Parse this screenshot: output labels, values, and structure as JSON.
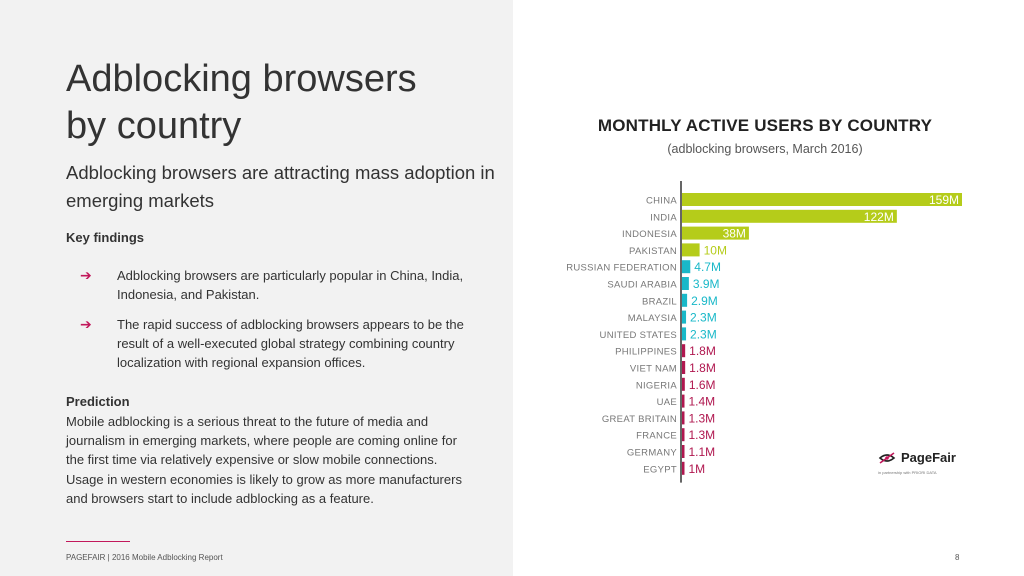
{
  "slide": {
    "title_line1": "Adblocking browsers",
    "title_line2": "by country",
    "subtitle": "Adblocking browsers are attracting mass adoption in emerging markets",
    "key_findings_heading": "Key findings",
    "findings": [
      "Adblocking browsers are particularly popular in China, India, Indonesia, and Pakistan.",
      "The rapid success of adblocking browsers appears to be the result of a well-executed global strategy combining country localization with regional expansion offices."
    ],
    "arrow_glyph": "➔",
    "prediction_heading": "Prediction",
    "prediction_body": "Mobile adblocking is a serious threat to the future of media and journalism in emerging markets, where people are coming online for the first time via relatively expensive or slow mobile connections. Usage in western economies is likely to grow as more manufacturers and browsers start to include adblocking as a feature.",
    "footer": "PAGEFAIR | 2016 Mobile Adblocking Report",
    "page_number": "8"
  },
  "logo": {
    "name": "PageFair",
    "tagline": "in partnership with PRIORI DATA"
  },
  "colors": {
    "accent": "#c2185b",
    "green": "#b5cc1a",
    "cyan": "#19b8c8",
    "crimson": "#b0174f",
    "left_bg": "#f2f2f2"
  },
  "chart_data": {
    "type": "bar",
    "orientation": "horizontal",
    "title": "MONTHLY ACTIVE USERS BY COUNTRY",
    "subtitle": "(adblocking browsers, March 2016)",
    "categories": [
      "CHINA",
      "INDIA",
      "INDONESIA",
      "PAKISTAN",
      "RUSSIAN FEDERATION",
      "SAUDI ARABIA",
      "BRAZIL",
      "MALAYSIA",
      "UNITED STATES",
      "PHILIPPINES",
      "VIET NAM",
      "NIGERIA",
      "UAE",
      "GREAT BRITAIN",
      "FRANCE",
      "GERMANY",
      "EGYPT"
    ],
    "values": [
      159,
      122,
      38,
      10,
      4.7,
      3.9,
      2.9,
      2.3,
      2.3,
      1.8,
      1.8,
      1.6,
      1.4,
      1.3,
      1.3,
      1.1,
      1
    ],
    "labels": [
      "159M",
      "122M",
      "38M",
      "10M",
      "4.7M",
      "3.9M",
      "2.9M",
      "2.3M",
      "2.3M",
      "1.8M",
      "1.8M",
      "1.6M",
      "1.4M",
      "1.3M",
      "1.3M",
      "1.1M",
      "1M"
    ],
    "color_groups": [
      "green",
      "green",
      "green",
      "green",
      "cyan",
      "cyan",
      "cyan",
      "cyan",
      "cyan",
      "crimson",
      "crimson",
      "crimson",
      "crimson",
      "crimson",
      "crimson",
      "crimson",
      "crimson"
    ],
    "label_inside": [
      true,
      true,
      true,
      false,
      false,
      false,
      false,
      false,
      false,
      false,
      false,
      false,
      false,
      false,
      false,
      false,
      false
    ],
    "unit": "M",
    "xlim": [
      0,
      159
    ],
    "grid": false,
    "legend": "none"
  }
}
